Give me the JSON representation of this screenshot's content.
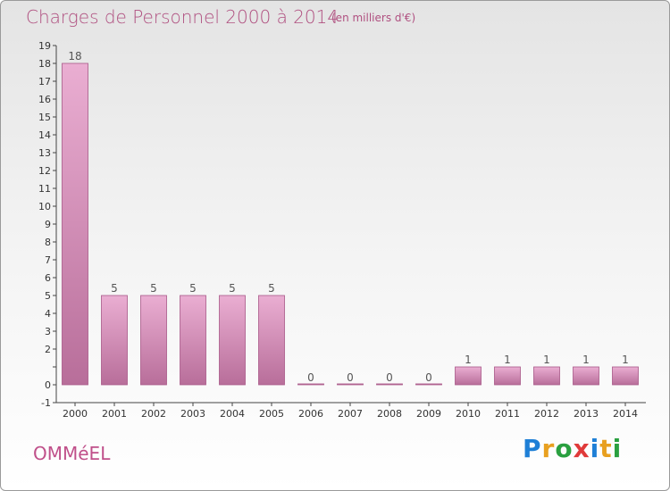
{
  "header": {
    "title": "Charges de Personnel 2000 à 2014",
    "unit_note": "(en milliers d'€)"
  },
  "footer": {
    "commune": "OMMéEL",
    "brand": "Proxiti",
    "brand_letters": [
      {
        "char": "P",
        "color": "#1e7fd6"
      },
      {
        "char": "r",
        "color": "#e8a020"
      },
      {
        "char": "o",
        "color": "#2aa040"
      },
      {
        "char": "x",
        "color": "#e03a3a"
      },
      {
        "char": "i",
        "color": "#1e7fd6"
      },
      {
        "char": "t",
        "color": "#e8a020"
      },
      {
        "char": "i",
        "color": "#2aa040"
      }
    ]
  },
  "colors": {
    "bar_top": "#eaaed2",
    "bar_bottom": "#b86e9a",
    "bar_edge": "#a85888",
    "axis": "#444444",
    "title": "#b05080"
  },
  "chart_data": {
    "type": "bar",
    "title": "Charges de Personnel 2000 à 2014",
    "subtitle": "(en milliers d'€)",
    "xlabel": "",
    "ylabel": "",
    "categories": [
      "2000",
      "2001",
      "2002",
      "2003",
      "2004",
      "2005",
      "2006",
      "2007",
      "2008",
      "2009",
      "2010",
      "2011",
      "2012",
      "2013",
      "2014"
    ],
    "values": [
      18,
      5,
      5,
      5,
      5,
      5,
      0,
      0,
      0,
      0,
      1,
      1,
      1,
      1,
      1
    ],
    "data_labels": [
      "18",
      "5",
      "5",
      "5",
      "5",
      "5",
      "0",
      "0",
      "0",
      "0",
      "1",
      "1",
      "1",
      "1",
      "1"
    ],
    "ylim": [
      -1,
      19
    ],
    "yticks": [
      -1,
      0,
      1,
      2,
      3,
      4,
      5,
      6,
      7,
      8,
      9,
      10,
      11,
      12,
      13,
      14,
      15,
      16,
      17,
      18,
      19
    ],
    "ytick_labels": [
      "-1",
      "0",
      "",
      "2",
      "3",
      "4",
      "5",
      "6",
      "7",
      "8",
      "9",
      "10",
      "11",
      "12",
      "13",
      "14",
      "15",
      "16",
      "17",
      "18",
      "19"
    ],
    "grid": false,
    "legend": "none"
  }
}
